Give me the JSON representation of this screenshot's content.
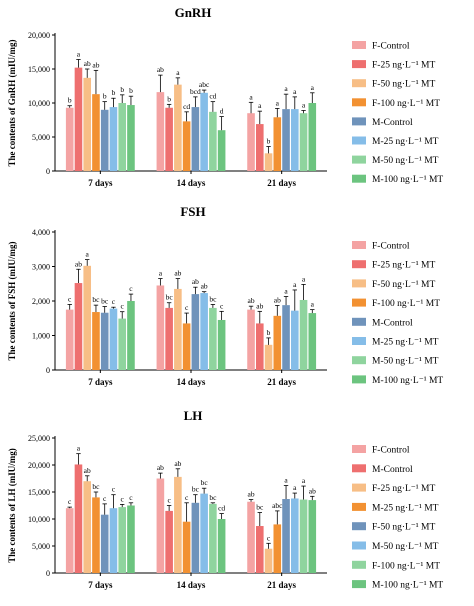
{
  "chart_data": [
    {
      "type": "bar",
      "title": "GnRH",
      "ylabel": "The contents of GnRH (mIU/mg)",
      "ylim": [
        0,
        20000
      ],
      "yticks": [
        "0",
        "5,000",
        "10,000",
        "15,000",
        "20,000"
      ],
      "categories": [
        "7 days",
        "14 days",
        "21 days"
      ],
      "series": [
        {
          "name": "F-Control",
          "color": "#f4a3a3",
          "values": [
            9300,
            11600,
            8500
          ],
          "errors": [
            300,
            2500,
            1600
          ],
          "labels": [
            "b",
            "ab",
            "a"
          ]
        },
        {
          "name": "F-25 ng·L⁻¹ MT",
          "color": "#ee6f6f",
          "values": [
            15200,
            9300,
            6900
          ],
          "errors": [
            1200,
            500,
            1900
          ],
          "labels": [
            "a",
            "b",
            "a"
          ]
        },
        {
          "name": "F-50 ng·L⁻¹ MT",
          "color": "#f7be86",
          "values": [
            13700,
            12700,
            2600
          ],
          "errors": [
            1300,
            1000,
            1000
          ],
          "labels": [
            "ab",
            "a",
            "b"
          ]
        },
        {
          "name": "F-100 ng·L⁻¹ MT",
          "color": "#f29132",
          "values": [
            11300,
            7300,
            7900
          ],
          "errors": [
            3500,
            1400,
            1300
          ],
          "labels": [
            "ab",
            "cd",
            "a"
          ]
        },
        {
          "name": "M-Control",
          "color": "#6f93bb",
          "values": [
            9000,
            9400,
            9100
          ],
          "errors": [
            1200,
            1500,
            2200
          ],
          "labels": [
            "b",
            "bcd",
            "a"
          ]
        },
        {
          "name": "M-25 ng·L⁻¹ MT",
          "color": "#85bde8",
          "values": [
            9400,
            11500,
            9100
          ],
          "errors": [
            1300,
            400,
            1800
          ],
          "labels": [
            "b",
            "abc",
            "a"
          ]
        },
        {
          "name": "M-50 ng·L⁻¹ MT",
          "color": "#8fd49e",
          "values": [
            10000,
            8700,
            8500
          ],
          "errors": [
            1200,
            1500,
            400
          ],
          "labels": [
            "b",
            "cd",
            "a"
          ]
        },
        {
          "name": "M-100 ng·L⁻¹ MT",
          "color": "#6cc47f",
          "values": [
            9700,
            6000,
            10000
          ],
          "errors": [
            1300,
            2000,
            1500
          ],
          "labels": [
            "b",
            "d",
            "a"
          ]
        }
      ]
    },
    {
      "type": "bar",
      "title": "FSH",
      "ylabel": "The contents of FSH (mIU/mg)",
      "ylim": [
        0,
        4000
      ],
      "yticks": [
        "0",
        "1,000",
        "2,000",
        "3,000",
        "4,000"
      ],
      "categories": [
        "7 days",
        "14 days",
        "21 days"
      ],
      "series": [
        {
          "name": "F-Control",
          "color": "#f4a3a3",
          "values": [
            1750,
            2450,
            1750
          ],
          "errors": [
            150,
            200,
            100
          ],
          "labels": [
            "c",
            "a",
            "ab"
          ]
        },
        {
          "name": "F-25 ng·L⁻¹ MT",
          "color": "#ee6f6f",
          "values": [
            2520,
            1800,
            1350
          ],
          "errors": [
            400,
            150,
            350
          ],
          "labels": [
            "ab",
            "bc",
            "ab"
          ]
        },
        {
          "name": "F-50 ng·L⁻¹ MT",
          "color": "#f7be86",
          "values": [
            3020,
            2350,
            730
          ],
          "errors": [
            180,
            300,
            200
          ],
          "labels": [
            "a",
            "ab",
            "b"
          ]
        },
        {
          "name": "F-100 ng·L⁻¹ MT",
          "color": "#f29132",
          "values": [
            1680,
            1350,
            1570
          ],
          "errors": [
            200,
            300,
            300
          ],
          "labels": [
            "bc",
            "c",
            "ab"
          ]
        },
        {
          "name": "M-Control",
          "color": "#6f93bb",
          "values": [
            1660,
            2200,
            1880
          ],
          "errors": [
            180,
            200,
            250
          ],
          "labels": [
            "bc",
            "ab",
            "a"
          ]
        },
        {
          "name": "M-25 ng·L⁻¹ MT",
          "color": "#85bde8",
          "values": [
            1780,
            2230,
            1720
          ],
          "errors": [
            40,
            40,
            600
          ],
          "labels": [
            "c",
            "ab",
            "a"
          ]
        },
        {
          "name": "M-50 ng·L⁻¹ MT",
          "color": "#8fd49e",
          "values": [
            1490,
            1800,
            2030
          ],
          "errors": [
            200,
            100,
            450
          ],
          "labels": [
            "c",
            "bc",
            "a"
          ]
        },
        {
          "name": "M-100 ng·L⁻¹ MT",
          "color": "#6cc47f",
          "values": [
            2000,
            1450,
            1650
          ],
          "errors": [
            200,
            250,
            100
          ],
          "labels": [
            "c",
            "c",
            "a"
          ]
        }
      ]
    },
    {
      "type": "bar",
      "title": "LH",
      "ylabel": "The contents of LH (mIU/mg)",
      "ylim": [
        0,
        25000
      ],
      "yticks": [
        "0",
        "5,000",
        "10,000",
        "15,000",
        "20,000",
        "25,000"
      ],
      "categories": [
        "7 days",
        "14 days",
        "21 days"
      ],
      "series": [
        {
          "name": "F-Control",
          "color": "#f4a3a3",
          "values": [
            12000,
            17500,
            13200
          ],
          "errors": [
            200,
            1000,
            400
          ],
          "labels": [
            "c",
            "ab",
            "ab"
          ]
        },
        {
          "name": "M-Control",
          "color": "#ee6f6f",
          "values": [
            20100,
            11500,
            8700
          ],
          "errors": [
            2000,
            1000,
            2500
          ],
          "labels": [
            "a",
            "c",
            "bc"
          ]
        },
        {
          "name": "F-25 ng·L⁻¹ MT",
          "color": "#f7be86",
          "values": [
            17000,
            17800,
            4500
          ],
          "errors": [
            1000,
            1500,
            1000
          ],
          "labels": [
            "ab",
            "ab",
            "c"
          ]
        },
        {
          "name": "M-25 ng·L⁻¹ MT",
          "color": "#f29132",
          "values": [
            14000,
            9500,
            9000
          ],
          "errors": [
            1000,
            3500,
            2500
          ],
          "labels": [
            "bc",
            "c",
            "abc"
          ]
        },
        {
          "name": "F-50 ng·L⁻¹ MT",
          "color": "#6f93bb",
          "values": [
            10800,
            13000,
            13700
          ],
          "errors": [
            2000,
            1500,
            2500
          ],
          "labels": [
            "c",
            "bc",
            "a"
          ]
        },
        {
          "name": "M-50 ng·L⁻¹ MT",
          "color": "#85bde8",
          "values": [
            12000,
            14700,
            13800
          ],
          "errors": [
            2500,
            1000,
            1000
          ],
          "labels": [
            "c",
            "bc",
            "a"
          ]
        },
        {
          "name": "F-100 ng·L⁻¹ MT",
          "color": "#8fd49e",
          "values": [
            12200,
            12800,
            13600
          ],
          "errors": [
            500,
            200,
            2500
          ],
          "labels": [
            "c",
            "bc",
            "a"
          ]
        },
        {
          "name": "M-100 ng·L⁻¹ MT",
          "color": "#6cc47f",
          "values": [
            12500,
            10000,
            13500
          ],
          "errors": [
            500,
            1000,
            700
          ],
          "labels": [
            "c",
            "cd",
            "ab"
          ]
        }
      ]
    }
  ]
}
